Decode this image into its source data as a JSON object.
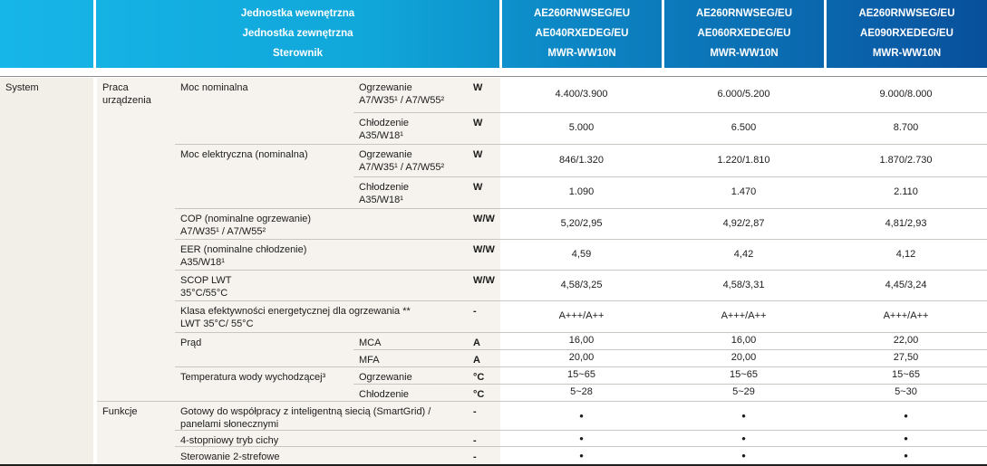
{
  "header": {
    "unit_labels": [
      "Jednostka wewnętrzna",
      "Jednostka zewnętrzna",
      "Sterownik"
    ],
    "products": [
      {
        "indoor": "AE260RNWSEG/EU",
        "outdoor": "AE040RXEDEG/EU",
        "controller": "MWR-WW10N"
      },
      {
        "indoor": "AE260RNWSEG/EU",
        "outdoor": "AE060RXEDEG/EU",
        "controller": "MWR-WW10N"
      },
      {
        "indoor": "AE260RNWSEG/EU",
        "outdoor": "AE090RXEDEG/EU",
        "controller": "MWR-WW10N"
      }
    ]
  },
  "sections": {
    "system": "System",
    "groups": [
      {
        "label": "Praca urządzenia"
      },
      {
        "label": "Funkcje"
      }
    ]
  },
  "rows": [
    {
      "label": "Moc nominalna",
      "sub": "Ogrzewanie\nA7/W35¹ / A7/W55²",
      "unit": "W",
      "values": [
        "4.400/3.900",
        "6.000/5.200",
        "9.000/8.000"
      ]
    },
    {
      "sub": "Chłodzenie\nA35/W18¹",
      "unit": "W",
      "values": [
        "5.000",
        "6.500",
        "8.700"
      ]
    },
    {
      "label": "Moc elektryczna (nominalna)",
      "sub": "Ogrzewanie\nA7/W35¹ / A7/W55²",
      "unit": "W",
      "values": [
        "846/1.320",
        "1.220/1.810",
        "1.870/2.730"
      ]
    },
    {
      "sub": "Chłodzenie\nA35/W18¹",
      "unit": "W",
      "values": [
        "1.090",
        "1.470",
        "2.110"
      ]
    },
    {
      "label": "COP (nominalne ogrzewanie)\nA7/W35¹ / A7/W55²",
      "unit": "W/W",
      "values": [
        "5,20/2,95",
        "4,92/2,87",
        "4,81/2,93"
      ]
    },
    {
      "label": "EER (nominalne chłodzenie)\nA35/W18¹",
      "unit": "W/W",
      "values": [
        "4,59",
        "4,42",
        "4,12"
      ]
    },
    {
      "label": "SCOP LWT\n35°C/55°C",
      "unit": "W/W",
      "values": [
        "4,58/3,25",
        "4,58/3,31",
        "4,45/3,24"
      ]
    },
    {
      "label": "Klasa efektywności energetycznej dla ogrzewania **\nLWT 35°C/ 55°C",
      "unit": "-",
      "values": [
        "A+++/A++",
        "A+++/A++",
        "A+++/A++"
      ]
    },
    {
      "label": "Prąd",
      "sub": "MCA",
      "unit": "A",
      "values": [
        "16,00",
        "16,00",
        "22,00"
      ]
    },
    {
      "sub": "MFA",
      "unit": "A",
      "values": [
        "20,00",
        "20,00",
        "27,50"
      ]
    },
    {
      "label": "Temperatura wody wychodzącej³",
      "sub": "Ogrzewanie",
      "unit": "°C",
      "values": [
        "15~65",
        "15~65",
        "15~65"
      ]
    },
    {
      "sub": "Chłodzenie",
      "unit": "°C",
      "values": [
        "5~28",
        "5~29",
        "5~30"
      ]
    },
    {
      "label": "Gotowy do współpracy z inteligentną siecią (SmartGrid) /\npanelami słonecznymi",
      "unit": "-",
      "values": [
        "•",
        "•",
        "•"
      ]
    },
    {
      "label": "4-stopniowy tryb cichy",
      "unit": "-",
      "values": [
        "•",
        "•",
        "•"
      ]
    },
    {
      "label": "Sterowanie 2-strefowe",
      "unit": "-",
      "values": [
        "•",
        "•",
        "•"
      ]
    }
  ],
  "colors": {
    "header_gradient_left": "#17b6e8",
    "header_gradient_right": "#084f9a",
    "header_text": "#ffffff",
    "label_area_bg": "#f6f3ee",
    "system_column_bg": "#f2efe8",
    "row_line": "#c9c6c1",
    "top_line": "#8d8d8d",
    "bottom_line": "#1e1e1e",
    "body_text": "#1c1c1c"
  }
}
